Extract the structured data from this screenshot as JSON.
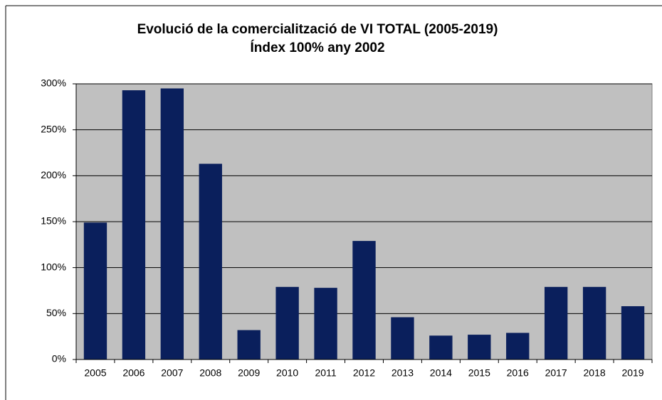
{
  "chart_data": {
    "type": "bar",
    "title": "Evolució de la comercialització de VI TOTAL (2005-2019)",
    "subtitle": "Índex 100% any 2002",
    "categories": [
      "2005",
      "2006",
      "2007",
      "2008",
      "2009",
      "2010",
      "2011",
      "2012",
      "2013",
      "2014",
      "2015",
      "2016",
      "2017",
      "2018",
      "2019"
    ],
    "values": [
      149,
      293,
      295,
      213,
      32,
      79,
      78,
      129,
      46,
      26,
      27,
      29,
      79,
      79,
      58
    ],
    "color": "#0a1f5c",
    "ylim": [
      0,
      300
    ],
    "yticks": [
      {
        "value": 0,
        "label": "0%"
      },
      {
        "value": 50,
        "label": "50%"
      },
      {
        "value": 100,
        "label": "100%"
      },
      {
        "value": 150,
        "label": "150%"
      },
      {
        "value": 200,
        "label": "200%"
      },
      {
        "value": 250,
        "label": "250%"
      },
      {
        "value": 300,
        "label": "300%"
      }
    ],
    "grid": true
  }
}
